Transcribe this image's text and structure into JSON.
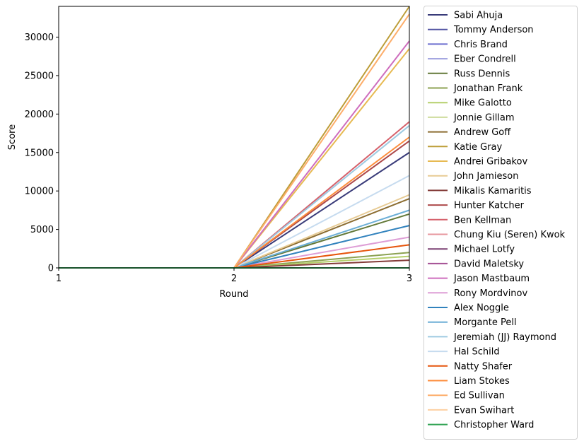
{
  "chart_data": {
    "type": "line",
    "xlabel": "Round",
    "ylabel": "Score",
    "x": [
      1,
      2,
      3
    ],
    "xticks": [
      "1",
      "2",
      "3"
    ],
    "yticks": [
      "0",
      "5000",
      "10000",
      "15000",
      "20000",
      "25000",
      "30000"
    ],
    "xlim": [
      1,
      3
    ],
    "ylim": [
      0,
      34000
    ],
    "grid": false,
    "legend_placement": "outside-right",
    "series": [
      {
        "name": "Sabi Ahuja",
        "color": "#393b79",
        "values": [
          0,
          0,
          15000
        ]
      },
      {
        "name": "Tommy Anderson",
        "color": "#5254a3",
        "values": [
          0,
          0,
          0
        ]
      },
      {
        "name": "Chris Brand",
        "color": "#6b6ecf",
        "values": [
          0,
          0,
          0
        ]
      },
      {
        "name": "Eber Condrell",
        "color": "#9c9ede",
        "values": [
          0,
          0,
          0
        ]
      },
      {
        "name": "Russ Dennis",
        "color": "#637939",
        "values": [
          0,
          0,
          7000
        ]
      },
      {
        "name": "Jonathan Frank",
        "color": "#8ca252",
        "values": [
          0,
          0,
          2000
        ]
      },
      {
        "name": "Mike Galotto",
        "color": "#b5cf6b",
        "values": [
          0,
          0,
          1500
        ]
      },
      {
        "name": "Jonnie Gillam",
        "color": "#cedb9c",
        "values": [
          0,
          0,
          0
        ]
      },
      {
        "name": "Andrew Goff",
        "color": "#8c6d31",
        "values": [
          0,
          0,
          9000
        ]
      },
      {
        "name": "Katie Gray",
        "color": "#bd9e39",
        "values": [
          0,
          0,
          34000
        ]
      },
      {
        "name": "Andrei Gribakov",
        "color": "#e7ba52",
        "values": [
          0,
          0,
          28500
        ]
      },
      {
        "name": "John Jamieson",
        "color": "#e7cb94",
        "values": [
          0,
          0,
          9500
        ]
      },
      {
        "name": "Mikalis Kamaritis",
        "color": "#843c39",
        "values": [
          0,
          0,
          1000
        ]
      },
      {
        "name": "Hunter Katcher",
        "color": "#ad494a",
        "values": [
          0,
          0,
          16500
        ]
      },
      {
        "name": "Ben Kellman",
        "color": "#d6616b",
        "values": [
          0,
          0,
          19000
        ]
      },
      {
        "name": "Chung Kiu (Seren) Kwok",
        "color": "#e7969c",
        "values": [
          0,
          0,
          0
        ]
      },
      {
        "name": "Michael Lotfy",
        "color": "#7b4173",
        "values": [
          0,
          0,
          0
        ]
      },
      {
        "name": "David Maletsky",
        "color": "#a55194",
        "values": [
          0,
          0,
          0
        ]
      },
      {
        "name": "Jason Mastbaum",
        "color": "#ce6dbd",
        "values": [
          0,
          0,
          29500
        ]
      },
      {
        "name": "Rony Mordvinov",
        "color": "#de9ed6",
        "values": [
          0,
          0,
          4000
        ]
      },
      {
        "name": "Alex Noggle",
        "color": "#3182bd",
        "values": [
          0,
          0,
          5500
        ]
      },
      {
        "name": "Morgante Pell",
        "color": "#6baed6",
        "values": [
          0,
          0,
          7500
        ]
      },
      {
        "name": "Jeremiah (JJ) Raymond",
        "color": "#9ecae1",
        "values": [
          0,
          0,
          18500
        ]
      },
      {
        "name": "Hal Schild",
        "color": "#c6dbef",
        "values": [
          0,
          0,
          12000
        ]
      },
      {
        "name": "Natty Shafer",
        "color": "#e6550d",
        "values": [
          0,
          0,
          3000
        ]
      },
      {
        "name": "Liam Stokes",
        "color": "#fd8d3c",
        "values": [
          0,
          0,
          17000
        ]
      },
      {
        "name": "Ed Sullivan",
        "color": "#fdae6b",
        "values": [
          0,
          0,
          33000
        ]
      },
      {
        "name": "Evan Swihart",
        "color": "#fdd0a2",
        "values": [
          0,
          0,
          0
        ]
      },
      {
        "name": "Christopher Ward",
        "color": "#31a354",
        "values": [
          0,
          0,
          0
        ]
      }
    ]
  }
}
